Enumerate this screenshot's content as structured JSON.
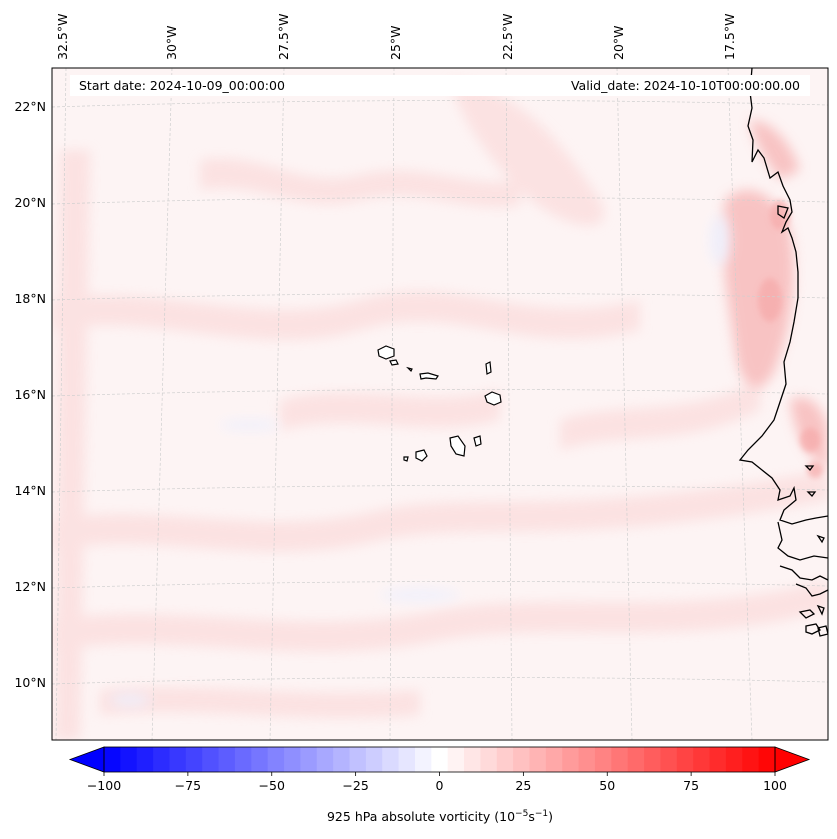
{
  "map": {
    "start_date_label": "Start date: 2024-10-09_00:00:00",
    "valid_date_label": "Valid_date: 2024-10-10T00:00:00.00",
    "longitude_labels": [
      "32.5°W",
      "30°W",
      "27.5°W",
      "25°W",
      "22.5°W",
      "20°W",
      "17.5°W"
    ],
    "latitude_labels": [
      "22°N",
      "20°N",
      "18°N",
      "16°N",
      "14°N",
      "12°N",
      "10°N"
    ],
    "features": [
      "Cape Verde Islands",
      "West African coastline (Mauritania, Senegal, Guinea-Bissau)"
    ]
  },
  "colorbar": {
    "label": "925 hPa absolute vorticity (10",
    "label_exp1": "−5",
    "label_mid": "s",
    "label_exp2": "−1",
    "label_end": ")",
    "tick_labels": [
      "−100",
      "−75",
      "−50",
      "−25",
      "0",
      "25",
      "50",
      "75",
      "100"
    ],
    "tick_values": [
      -100,
      -75,
      -50,
      -25,
      0,
      25,
      50,
      75,
      100
    ],
    "vmin": -100,
    "vmax": 100,
    "levels": 41,
    "colormap": "bwr",
    "extend": "both"
  },
  "colors": {
    "negative_end": "#0000ff",
    "zero": "#ffffff",
    "positive_end": "#ff0000",
    "background_field": "#fdf3f3",
    "coastline": "#000000"
  }
}
